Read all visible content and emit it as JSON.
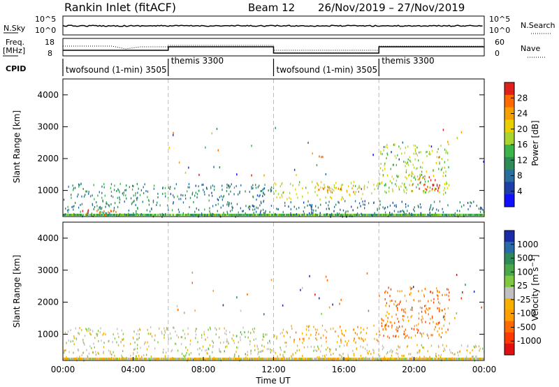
{
  "header": {
    "site": "Rankin Inlet (fitACF)",
    "beam": "Beam 12",
    "dates": "26/Nov/2019 – 27/Nov/2019"
  },
  "panels": {
    "nsky": {
      "label": "N.Sky",
      "right_label": "N.Search",
      "left_ticks": [
        "10^5",
        "10^0"
      ],
      "right_ticks": [
        "10^5",
        "10^0"
      ]
    },
    "freq": {
      "label_line1": "Freq.",
      "label_line2": "[MHz]",
      "right_label": "Nave",
      "left_ticks": [
        "18",
        "8"
      ],
      "right_ticks": [
        "60",
        "0"
      ]
    },
    "cpid": {
      "label": "CPID",
      "segments": [
        {
          "start_hour": 0,
          "text": "twofsound (1-min) 3505"
        },
        {
          "start_hour": 6,
          "text": "themis 3300"
        },
        {
          "start_hour": 12,
          "text": "twofsound (1-min) 3505"
        },
        {
          "start_hour": 18,
          "text": "themis 3300"
        }
      ]
    }
  },
  "colorbars": {
    "power": {
      "label": "Power [dB]",
      "ticks": [
        "28",
        "24",
        "20",
        "16",
        "12",
        "8",
        "4"
      ],
      "colors": [
        "#e0201a",
        "#ff6a00",
        "#f5a000",
        "#e8d000",
        "#a8d430",
        "#3cb44a",
        "#2e8b57",
        "#2a6e9e",
        "#1f3fa8",
        "#1010ff"
      ]
    },
    "velocity": {
      "label": "Velocity [m s^-1]",
      "ticks": [
        "1000",
        "500",
        "100",
        "25",
        "-25",
        "-100",
        "-500",
        "-1000"
      ],
      "colors": [
        "#1a2aa8",
        "#2a6aa8",
        "#2e8b57",
        "#4aa84a",
        "#7fc840",
        "#c0c0c0",
        "#f5b000",
        "#ffa000",
        "#ff6a00",
        "#ff3a00",
        "#e01010"
      ]
    }
  },
  "axes": {
    "x_label": "Time UT",
    "x_ticks": [
      "00:00",
      "04:00",
      "08:00",
      "12:00",
      "16:00",
      "20:00",
      "00:00"
    ],
    "y_label": "Slant Range [km]",
    "y_ticks": [
      "4000",
      "3000",
      "2000",
      "1000"
    ]
  },
  "chart_data": [
    {
      "type": "heatmap",
      "title": "Rankin Inlet (fitACF) Beam 12 26/Nov/2019 – 27/Nov/2019",
      "quantity": "Power [dB]",
      "xlabel": "Time UT",
      "ylabel": "Slant Range [km]",
      "xlim_hours": [
        0,
        24
      ],
      "ylim_km": [
        180,
        4500
      ],
      "colorbar_range": [
        0,
        30
      ],
      "scatter_regions": [
        {
          "t0": 0.0,
          "t1": 6.0,
          "r0": 200,
          "r1": 1250,
          "value": 10
        },
        {
          "t0": 1.0,
          "t1": 3.0,
          "r0": 220,
          "r1": 450,
          "value": 26
        },
        {
          "t0": 6.0,
          "t1": 12.0,
          "r0": 200,
          "r1": 1250,
          "value": 9
        },
        {
          "t0": 12.0,
          "t1": 18.0,
          "r0": 750,
          "r1": 1300,
          "value": 18
        },
        {
          "t0": 14.5,
          "t1": 17.0,
          "r0": 950,
          "r1": 1150,
          "value": 25
        },
        {
          "t0": 18.0,
          "t1": 22.0,
          "r0": 900,
          "r1": 2500,
          "value": 16
        },
        {
          "t0": 19.8,
          "t1": 21.5,
          "r0": 1000,
          "r1": 1500,
          "value": 28
        },
        {
          "t0": 12.0,
          "t1": 24.0,
          "r0": 200,
          "r1": 700,
          "value": 8
        }
      ]
    },
    {
      "type": "heatmap",
      "quantity": "Velocity [m s^-1]",
      "xlabel": "Time UT",
      "ylabel": "Slant Range [km]",
      "xlim_hours": [
        0,
        24
      ],
      "ylim_km": [
        180,
        4500
      ],
      "colorbar_range": [
        -1000,
        1000
      ],
      "scatter_regions": [
        {
          "t0": 0.0,
          "t1": 6.0,
          "r0": 200,
          "r1": 1250,
          "value": 0
        },
        {
          "t0": 6.0,
          "t1": 12.0,
          "r0": 200,
          "r1": 1250,
          "value": 60
        },
        {
          "t0": 12.0,
          "t1": 18.0,
          "r0": 750,
          "r1": 1300,
          "value": -300
        },
        {
          "t0": 18.0,
          "t1": 22.0,
          "r0": 900,
          "r1": 2500,
          "value": -500
        },
        {
          "t0": 12.0,
          "t1": 24.0,
          "r0": 200,
          "r1": 700,
          "value": -100
        }
      ]
    }
  ]
}
